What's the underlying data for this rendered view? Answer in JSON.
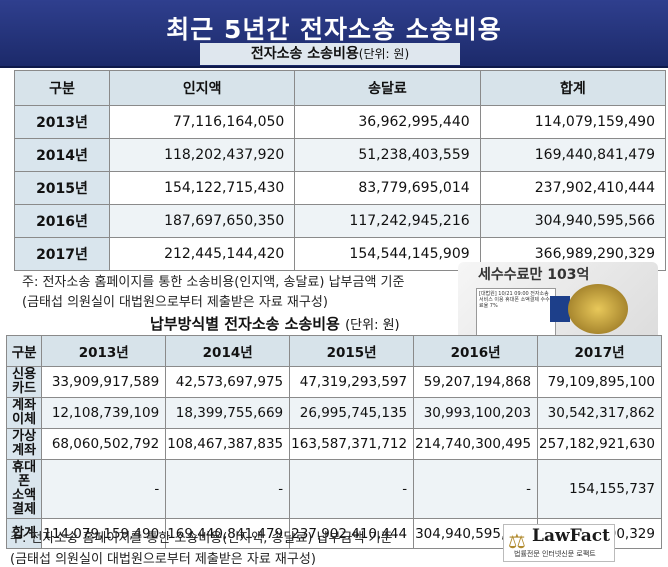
{
  "banner": {
    "title": "최근 5년간 전자소송 소송비용"
  },
  "table1": {
    "title": "전자소송 소송비용",
    "unit": "(단위: 원)",
    "headers": [
      "구분",
      "인지액",
      "송달료",
      "합계"
    ],
    "rows": [
      [
        "2013년",
        "77,116,164,050",
        "36,962,995,440",
        "114,079,159,490"
      ],
      [
        "2014년",
        "118,202,437,920",
        "51,238,403,559",
        "169,440,841,479"
      ],
      [
        "2015년",
        "154,122,715,430",
        "83,779,695,014",
        "237,902,410,444"
      ],
      [
        "2016년",
        "187,697,650,350",
        "117,242,945,216",
        "304,940,595,566"
      ],
      [
        "2017년",
        "212,445,144,420",
        "154,544,145,909",
        "366,989,290,329"
      ]
    ],
    "note1": "주: 전자소송 홈페이지를 통한 소송비용(인지액, 송달료) 납부금액 기준",
    "note2": "(금태섭 의원실이 대법원으로부터 제출받은 자료 재구성)"
  },
  "table2": {
    "title": "납부방식별 전자소송 소송비용",
    "unit": "(단위: 원)",
    "headers": [
      "구분",
      "2013년",
      "2014년",
      "2015년",
      "2016년",
      "2017년"
    ],
    "rows": [
      [
        "신용카드",
        "33,909,917,589",
        "42,573,697,975",
        "47,319,293,597",
        "59,207,194,868",
        "79,109,895,100"
      ],
      [
        "계좌이체",
        "12,108,739,109",
        "18,399,755,669",
        "26,995,745,135",
        "30,993,100,203",
        "30,542,317,862"
      ],
      [
        "가상계좌",
        "68,060,502,792",
        "108,467,387,835",
        "163,587,371,712",
        "214,740,300,495",
        "257,182,921,630"
      ],
      [
        "휴대폰\n소액결제",
        "-",
        "-",
        "-",
        "-",
        "154,155,737"
      ],
      [
        "합계",
        "114,079,159,490",
        "169,440,841,479",
        "237,902,410,444",
        "304,940,595,566",
        "366,989,290,329"
      ]
    ],
    "note1": "주: 전자소송 홈페이지를 통한 소송비용(인지액, 송달료) 납부금액 기준",
    "note2": "(금태섭 의원실이 대법원으로부터 제출받은 자료 재구성)"
  },
  "overlay": {
    "fee_text": "세수수료만 103억",
    "card_text": "[대법원] 10/21 09:00 전자소송서비스 이용 휴대폰 소액결제 수수료율 7%"
  },
  "logo": {
    "brand": "LawFact",
    "tagline": "법률전문 인터넷신문 로팩트"
  },
  "colors": {
    "banner": "#2f3f8e",
    "header_cell": "#d7e3ea",
    "alt_row": "#eef3f6"
  }
}
